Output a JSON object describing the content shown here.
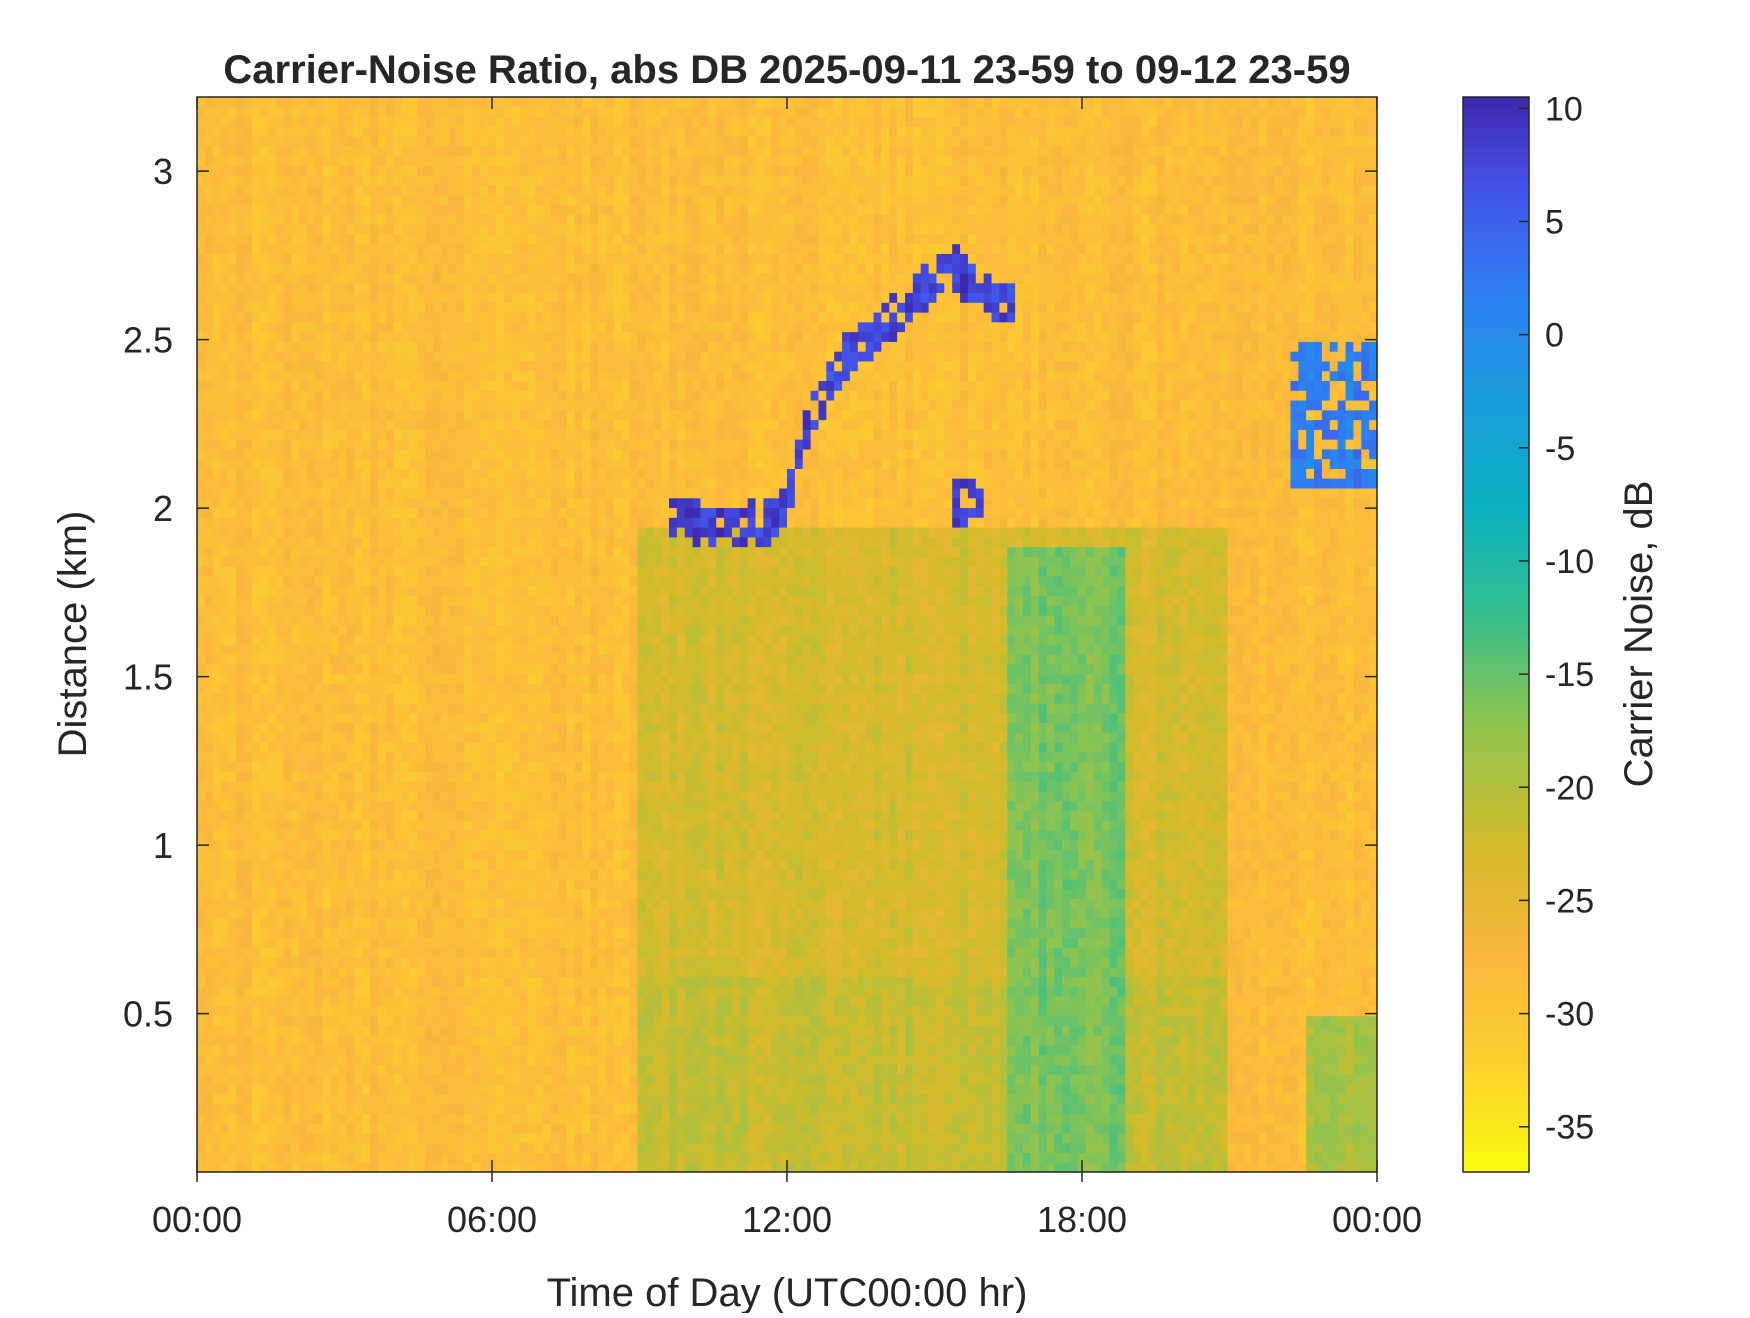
{
  "chart_data": {
    "type": "heatmap",
    "title": "Carrier-Noise Ratio, abs DB 2025-09-11 23-59 to 09-12 23-59",
    "xlabel": "Time of Day (UTC00:00 hr)",
    "ylabel": "Distance (km)",
    "x_tick_labels": [
      "00:00",
      "06:00",
      "12:00",
      "18:00",
      "00:00"
    ],
    "x_tick_hours": [
      0,
      6,
      12,
      18,
      24
    ],
    "xlim_hours": [
      0,
      24
    ],
    "y_tick_labels": [
      "0.5",
      "1",
      "1.5",
      "2",
      "2.5",
      "3"
    ],
    "y_tick_values": [
      0.5,
      1,
      1.5,
      2,
      2.5,
      3
    ],
    "ylim": [
      0.03,
      3.22
    ],
    "colorbar": {
      "label": "Carrier Noise, dB",
      "tick_labels": [
        "10",
        "5",
        "0",
        "-5",
        "-10",
        "-15",
        "-20",
        "-25",
        "-30",
        "-35"
      ],
      "tick_values": [
        10,
        5,
        0,
        -5,
        -10,
        -15,
        -20,
        -25,
        -30,
        -35
      ],
      "range": [
        -37,
        10.5
      ],
      "colormap": "parula"
    },
    "background_level_db": -29,
    "features": [
      {
        "name": "boundary layer top",
        "points_hours_km": [
          [
            9.6,
            1.97
          ],
          [
            10.6,
            1.95
          ],
          [
            11.6,
            1.96
          ],
          [
            12.0,
            2.0
          ],
          [
            12.4,
            2.25
          ],
          [
            12.8,
            2.35
          ],
          [
            13.2,
            2.45
          ],
          [
            13.8,
            2.52
          ],
          [
            14.4,
            2.6
          ],
          [
            15.0,
            2.68
          ],
          [
            15.4,
            2.72
          ],
          [
            15.8,
            2.65
          ],
          [
            16.2,
            2.62
          ],
          [
            16.6,
            2.6
          ]
        ],
        "level_db": 8
      },
      {
        "name": "cloud patch 10h",
        "hours": [
          9.7,
          10.1
        ],
        "km": [
          1.96,
          2.03
        ],
        "level_db": 8
      },
      {
        "name": "cloud patch 15.5h",
        "hours": [
          15.3,
          16.0
        ],
        "km": [
          1.93,
          2.1
        ],
        "level_db": 8
      },
      {
        "name": "cloud patch 23h",
        "hours": [
          22.3,
          24.0
        ],
        "km": [
          2.05,
          2.5
        ],
        "level_db": 2
      },
      {
        "name": "mixed layer",
        "hours": [
          9.0,
          21.0
        ],
        "km": [
          0.03,
          1.95
        ],
        "level_db": -23
      },
      {
        "name": "afternoon plume",
        "hours": [
          16.5,
          18.8
        ],
        "km": [
          0.03,
          1.9
        ],
        "level_db": -16
      },
      {
        "name": "late surface layer",
        "hours": [
          22.6,
          24.0
        ],
        "km": [
          0.03,
          0.5
        ],
        "level_db": -19
      }
    ]
  }
}
